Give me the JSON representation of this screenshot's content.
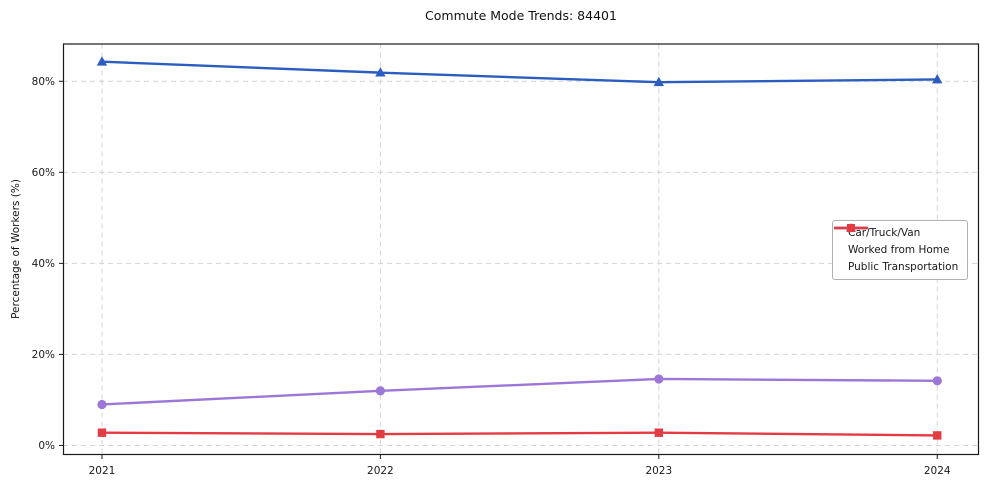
{
  "title": "Commute Mode Trends: 84401",
  "ylabel": "Percentage of Workers (%)",
  "chart_data": {
    "type": "line",
    "title": "Commute Mode Trends: 84401",
    "xlabel": "",
    "ylabel": "Percentage of Workers (%)",
    "x": [
      2021,
      2022,
      2023,
      2024
    ],
    "x_tick_labels": [
      "2021",
      "2022",
      "2023",
      "2024"
    ],
    "y_ticks": [
      0,
      20,
      40,
      60,
      80
    ],
    "y_tick_labels": [
      "0%",
      "20%",
      "40%",
      "60%",
      "80%"
    ],
    "xlim": [
      2020.86,
      2024.15
    ],
    "ylim": [
      -2.1,
      88.3
    ],
    "grid": "both, dashed",
    "legend_position": "center-right",
    "series": [
      {
        "name": "Car/Truck/Van",
        "color": "#2b5dc1",
        "marker": "triangle",
        "values": [
          84.3,
          81.9,
          79.8,
          80.4
        ]
      },
      {
        "name": "Worked from Home",
        "color": "#9d77d8",
        "marker": "circle",
        "values": [
          9.0,
          12.0,
          14.6,
          14.2
        ]
      },
      {
        "name": "Public Transportation",
        "color": "#e23b42",
        "marker": "square",
        "values": [
          2.8,
          2.5,
          2.8,
          2.2
        ]
      }
    ],
    "colors": {
      "grid": "#d4d4d4",
      "spine": "#1a1a1a",
      "tick_label": "#1a1a1a",
      "legend_border": "#b0b0b0"
    }
  }
}
